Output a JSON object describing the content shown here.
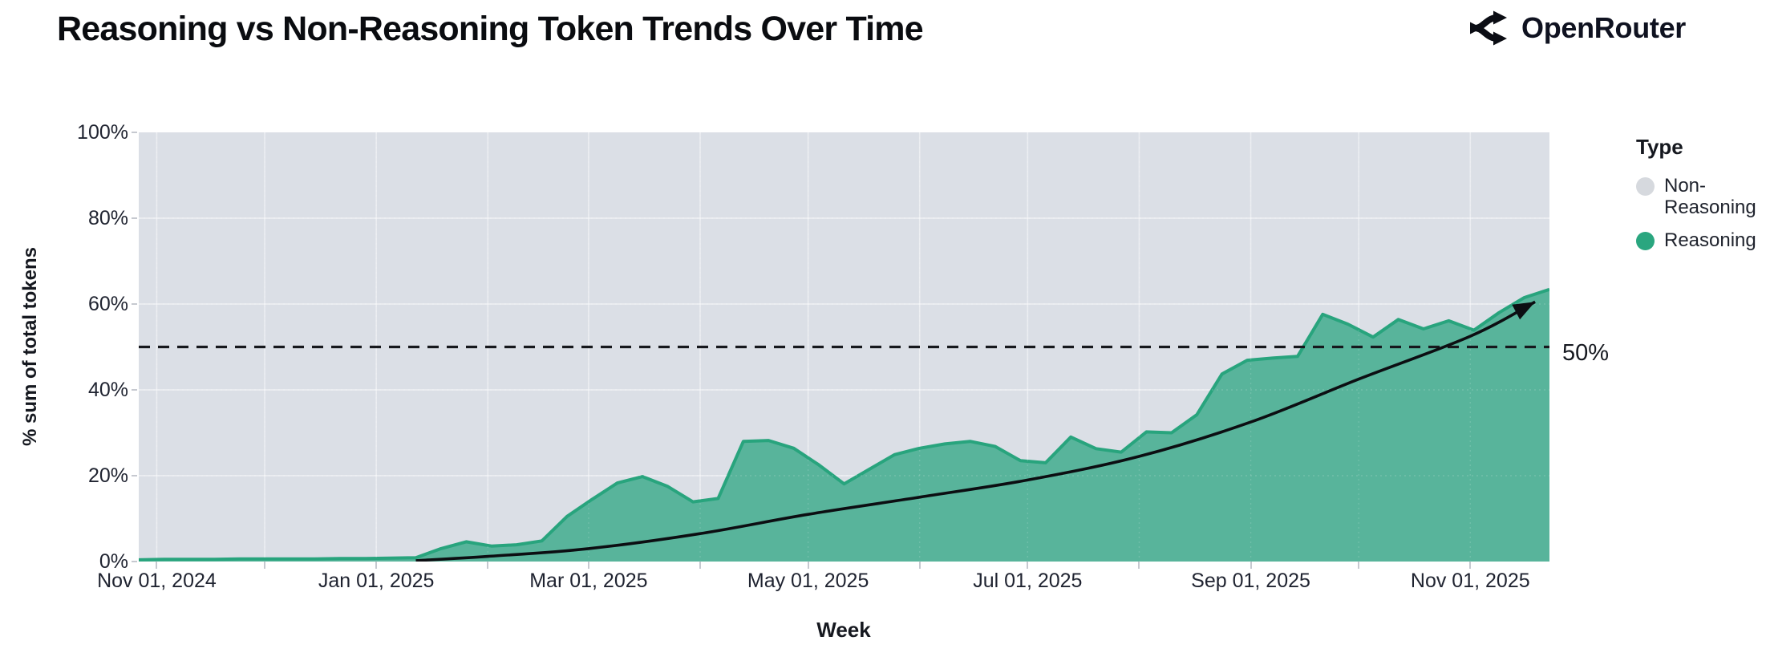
{
  "header": {
    "title": "Reasoning vs Non-Reasoning Token Trends Over Time",
    "logo_text": "OpenRouter"
  },
  "axes": {
    "y_title": "% sum of total tokens",
    "x_title": "Week"
  },
  "legend": {
    "title": "Type",
    "items": [
      {
        "label": "Non-Reasoning",
        "color": "#d6d9de"
      },
      {
        "label": "Reasoning",
        "color": "#2aa67f"
      }
    ]
  },
  "chart_data": {
    "type": "area",
    "stacked_percent": true,
    "title": "Reasoning vs Non-Reasoning Token Trends Over Time",
    "xlabel": "Week",
    "ylabel": "% sum of total tokens",
    "ylim": [
      0,
      100
    ],
    "y_ticks": [
      0,
      20,
      40,
      60,
      80,
      100
    ],
    "x_domain": [
      "2024-10-27",
      "2025-11-23"
    ],
    "x_ticks": [
      {
        "date": "2024-11-01",
        "label": "Nov 01, 2024"
      },
      {
        "date": "2025-01-01",
        "label": "Jan 01, 2025"
      },
      {
        "date": "2025-03-01",
        "label": "Mar 01, 2025"
      },
      {
        "date": "2025-05-01",
        "label": "May 01, 2025"
      },
      {
        "date": "2025-07-01",
        "label": "Jul 01, 2025"
      },
      {
        "date": "2025-09-01",
        "label": "Sep 01, 2025"
      },
      {
        "date": "2025-11-01",
        "label": "Nov 01, 2025"
      }
    ],
    "month_gridlines": [
      "2024-11-01",
      "2024-12-01",
      "2025-01-01",
      "2025-02-01",
      "2025-03-01",
      "2025-04-01",
      "2025-05-01",
      "2025-06-01",
      "2025-07-01",
      "2025-08-01",
      "2025-09-01",
      "2025-10-01",
      "2025-11-01"
    ],
    "x": [
      "2024-10-27",
      "2024-11-03",
      "2024-11-10",
      "2024-11-17",
      "2024-11-24",
      "2024-12-01",
      "2024-12-08",
      "2024-12-15",
      "2024-12-22",
      "2024-12-29",
      "2025-01-05",
      "2025-01-12",
      "2025-01-19",
      "2025-01-26",
      "2025-02-02",
      "2025-02-09",
      "2025-02-16",
      "2025-02-23",
      "2025-03-02",
      "2025-03-09",
      "2025-03-16",
      "2025-03-23",
      "2025-03-30",
      "2025-04-06",
      "2025-04-13",
      "2025-04-20",
      "2025-04-27",
      "2025-05-04",
      "2025-05-11",
      "2025-05-18",
      "2025-05-25",
      "2025-06-01",
      "2025-06-08",
      "2025-06-15",
      "2025-06-22",
      "2025-06-29",
      "2025-07-06",
      "2025-07-13",
      "2025-07-20",
      "2025-07-27",
      "2025-08-03",
      "2025-08-10",
      "2025-08-17",
      "2025-08-24",
      "2025-08-31",
      "2025-09-07",
      "2025-09-14",
      "2025-09-21",
      "2025-09-28",
      "2025-10-05",
      "2025-10-12",
      "2025-10-19",
      "2025-10-26",
      "2025-11-02",
      "2025-11-09",
      "2025-11-16",
      "2025-11-23"
    ],
    "series": [
      {
        "name": "Non-Reasoning",
        "color": "#dbdfe6",
        "note": "remainder of stack up to 100%"
      },
      {
        "name": "Reasoning",
        "fill_color": "#58b49b",
        "line_color": "#28a47d",
        "values_pct": [
          0.4,
          0.5,
          0.5,
          0.5,
          0.6,
          0.6,
          0.6,
          0.6,
          0.7,
          0.7,
          0.8,
          0.9,
          3.0,
          4.6,
          3.6,
          3.9,
          4.8,
          10.5,
          14.5,
          18.3,
          19.8,
          17.5,
          13.9,
          14.7,
          28.0,
          28.2,
          26.4,
          22.5,
          18.1,
          21.5,
          24.9,
          26.4,
          27.4,
          28.0,
          26.8,
          23.5,
          23.0,
          29.0,
          26.3,
          25.5,
          30.2,
          30.0,
          34.2,
          43.7,
          46.9,
          47.4,
          47.8,
          57.6,
          55.3,
          52.3,
          56.4,
          54.2,
          56.1,
          53.9,
          58.0,
          61.5,
          63.4
        ]
      }
    ],
    "ref_line": {
      "value": 50,
      "label": "50%",
      "style": "dashed",
      "color": "#16181d"
    },
    "trend_line": {
      "color": "#0c0e12",
      "arrow": true,
      "points": [
        {
          "date": "2025-01-12",
          "pct": 0.2
        },
        {
          "date": "2025-02-01",
          "pct": 1.2
        },
        {
          "date": "2025-03-01",
          "pct": 3.0
        },
        {
          "date": "2025-04-01",
          "pct": 6.5
        },
        {
          "date": "2025-05-01",
          "pct": 11.0
        },
        {
          "date": "2025-06-01",
          "pct": 15.0
        },
        {
          "date": "2025-07-01",
          "pct": 19.0
        },
        {
          "date": "2025-08-01",
          "pct": 24.5
        },
        {
          "date": "2025-09-01",
          "pct": 32.5
        },
        {
          "date": "2025-10-01",
          "pct": 42.5
        },
        {
          "date": "2025-11-01",
          "pct": 52.5
        },
        {
          "date": "2025-11-19",
          "pct": 60.5
        }
      ]
    },
    "grid": true,
    "legend_position": "right"
  }
}
